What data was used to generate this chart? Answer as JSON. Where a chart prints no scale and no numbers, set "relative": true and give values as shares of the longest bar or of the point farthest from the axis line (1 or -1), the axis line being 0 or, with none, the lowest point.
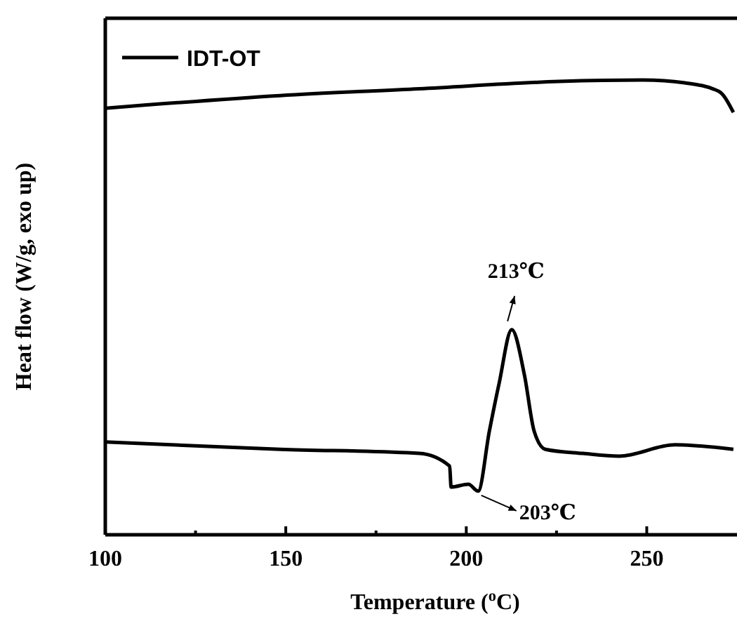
{
  "chart_data": {
    "type": "line",
    "relative": true,
    "xlabel": "Temperature ($^{o}$C)",
    "ylabel": "Heat flow (W/g, exo up)",
    "xlim": [
      100,
      275
    ],
    "xticks": [
      100,
      {
        "value": 125,
        "label": null
      },
      150,
      {
        "value": 175,
        "label": null
      },
      200,
      {
        "value": 225,
        "label": null
      },
      250
    ],
    "legend": "top left",
    "marker": "none",
    "line_style": "solid",
    "grid": false,
    "series": [
      {
        "name": "IDT-OT",
        "color": "#000000",
        "x": [
          100,
          148.4,
          187,
          225.7,
          249,
          260.5,
          270,
          274
        ],
        "values": [
          0.938,
          0.966,
          0.981,
          0.997,
          1.0,
          0.994,
          0.975,
          0.929
        ]
      },
      {
        "color": "#000000",
        "x": [
          100,
          148.4,
          187,
          195.4,
          195.8,
          200.6,
          203.3,
          206.4,
          209.1,
          212.6,
          216.1,
          218.8,
          221.9,
          232.3,
          242.4,
          257.8,
          274
        ],
        "values": [
          0.204,
          0.188,
          0.179,
          0.151,
          0.105,
          0.111,
          0.096,
          0.228,
          0.333,
          0.451,
          0.352,
          0.228,
          0.188,
          0.179,
          0.173,
          0.198,
          0.188
        ]
      }
    ],
    "annotations": [
      {
        "text": "213℃",
        "x": 213,
        "y": 0.451
      },
      {
        "text": "203℃",
        "x": 203,
        "y": 0.096
      }
    ]
  }
}
